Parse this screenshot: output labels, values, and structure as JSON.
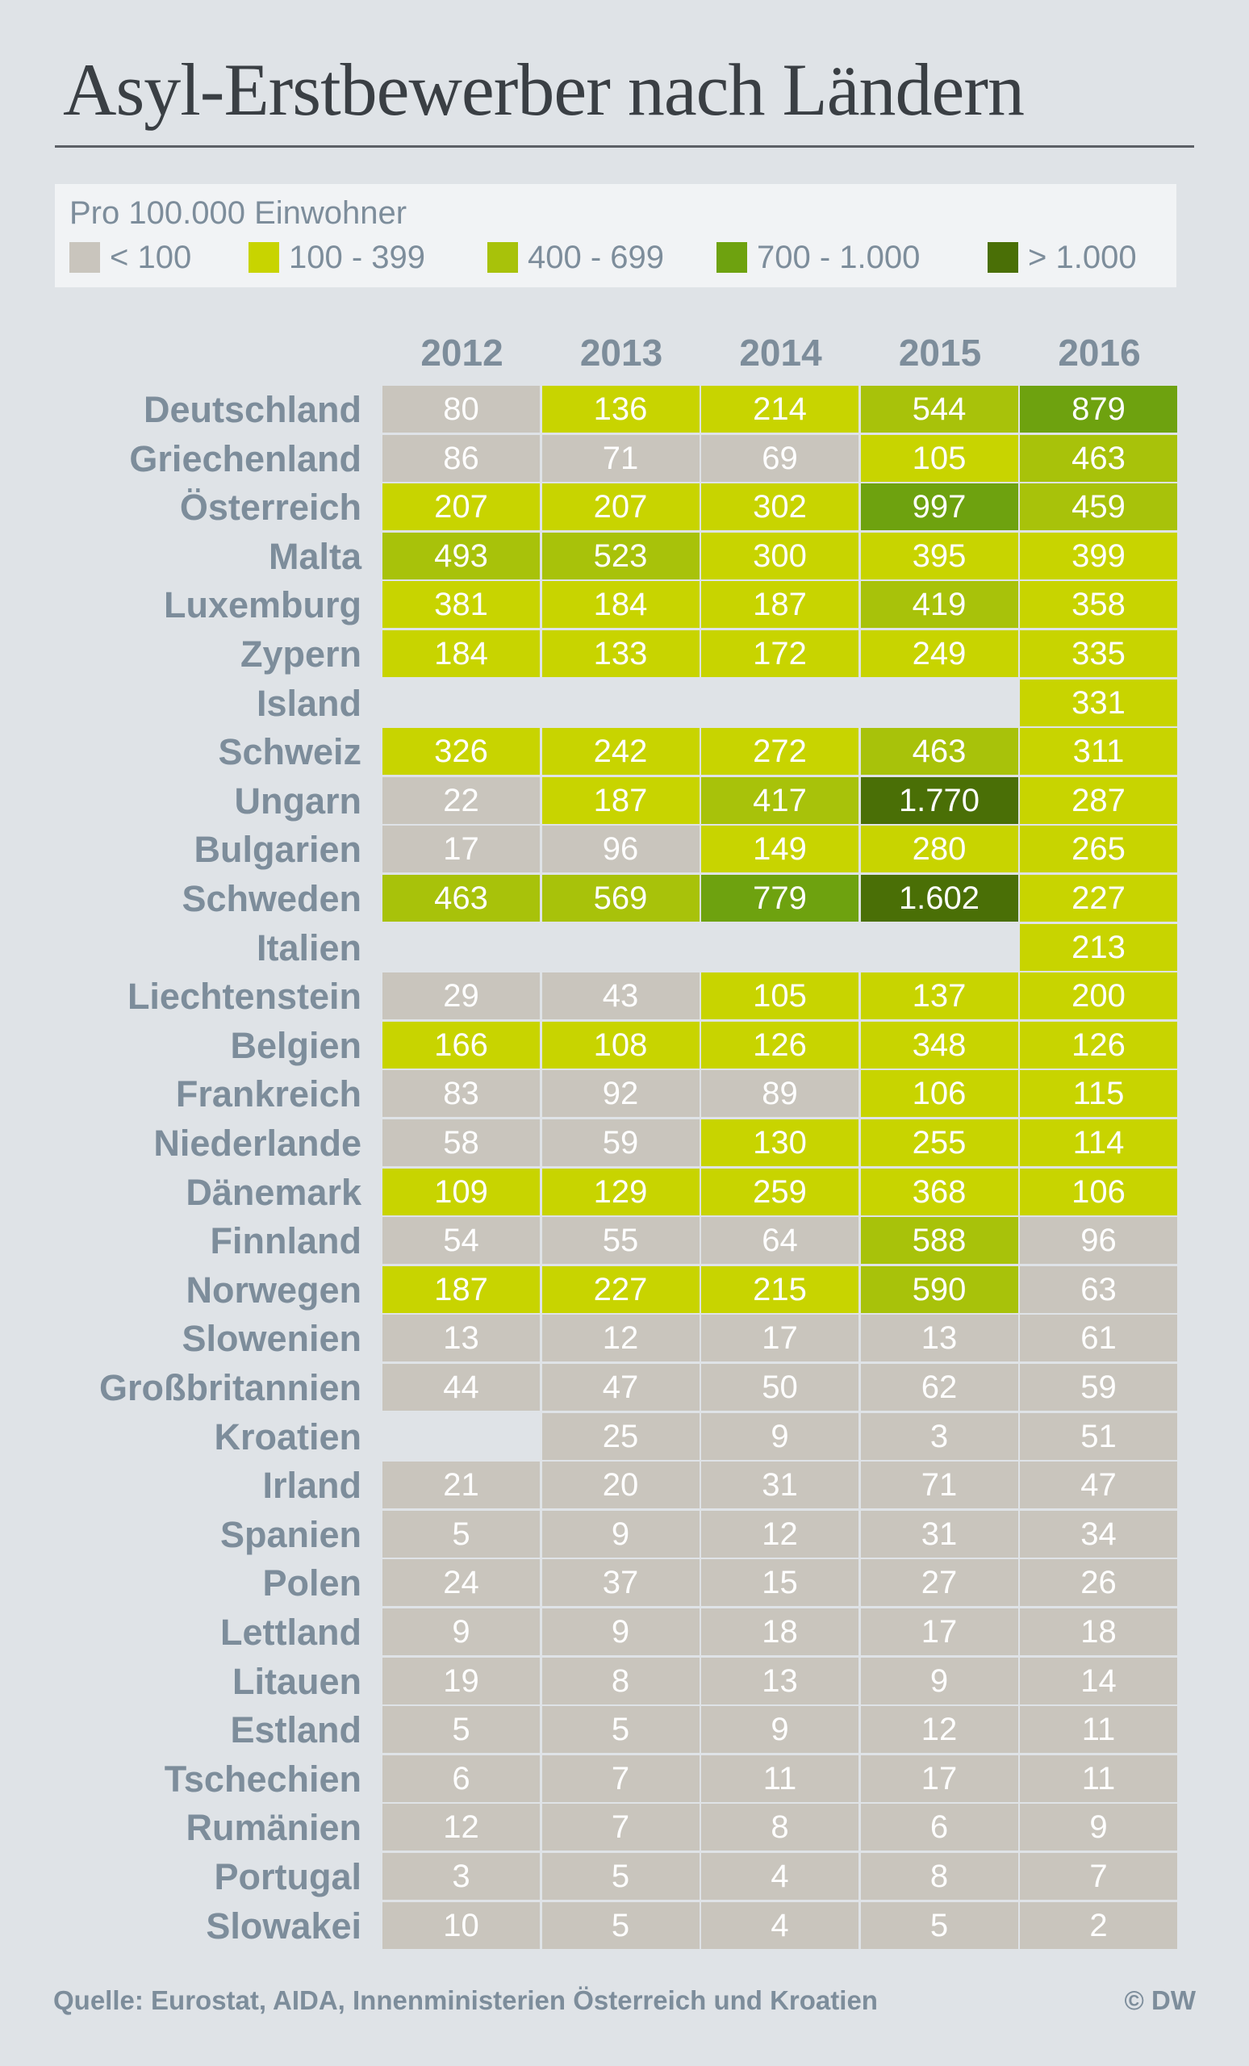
{
  "title": "Asyl-Erstbewerber nach Ländern",
  "source": "Quelle: Eurostat, AIDA, Innenministerien Österreich und Kroatien",
  "copyright": "© DW",
  "legend": {
    "title": "Pro 100.000 Einwohner",
    "items": [
      {
        "label": "< 100",
        "color": "#c9c5bd"
      },
      {
        "label": "100 - 399",
        "color": "#c8d400"
      },
      {
        "label": "400 - 699",
        "color": "#a8c20a"
      },
      {
        "label": "700 - 1.000",
        "color": "#6ea20f"
      },
      {
        "label": "> 1.000",
        "color": "#4a6f06"
      }
    ]
  },
  "chart_data": {
    "type": "table",
    "title": "Asyl-Erstbewerber nach Ländern",
    "subtitle": "Pro 100.000 Einwohner",
    "columns": [
      "2012",
      "2013",
      "2014",
      "2015",
      "2016"
    ],
    "thresholds": [
      100,
      400,
      700,
      1000
    ],
    "rows": [
      {
        "label": "Deutschland",
        "values": [
          "80",
          "136",
          "214",
          "544",
          "879"
        ]
      },
      {
        "label": "Griechenland",
        "values": [
          "86",
          "71",
          "69",
          "105",
          "463"
        ]
      },
      {
        "label": "Österreich",
        "values": [
          "207",
          "207",
          "302",
          "997",
          "459"
        ]
      },
      {
        "label": "Malta",
        "values": [
          "493",
          "523",
          "300",
          "395",
          "399"
        ]
      },
      {
        "label": "Luxemburg",
        "values": [
          "381",
          "184",
          "187",
          "419",
          "358"
        ]
      },
      {
        "label": "Zypern",
        "values": [
          "184",
          "133",
          "172",
          "249",
          "335"
        ]
      },
      {
        "label": "Island",
        "values": [
          null,
          null,
          null,
          null,
          "331"
        ]
      },
      {
        "label": "Schweiz",
        "values": [
          "326",
          "242",
          "272",
          "463",
          "311"
        ]
      },
      {
        "label": "Ungarn",
        "values": [
          "22",
          "187",
          "417",
          "1.770",
          "287"
        ]
      },
      {
        "label": "Bulgarien",
        "values": [
          "17",
          "96",
          "149",
          "280",
          "265"
        ]
      },
      {
        "label": "Schweden",
        "values": [
          "463",
          "569",
          "779",
          "1.602",
          "227"
        ]
      },
      {
        "label": "Italien",
        "values": [
          null,
          null,
          null,
          null,
          "213"
        ]
      },
      {
        "label": "Liechtenstein",
        "values": [
          "29",
          "43",
          "105",
          "137",
          "200"
        ]
      },
      {
        "label": "Belgien",
        "values": [
          "166",
          "108",
          "126",
          "348",
          "126"
        ]
      },
      {
        "label": "Frankreich",
        "values": [
          "83",
          "92",
          "89",
          "106",
          "115"
        ]
      },
      {
        "label": "Niederlande",
        "values": [
          "58",
          "59",
          "130",
          "255",
          "114"
        ]
      },
      {
        "label": "Dänemark",
        "values": [
          "109",
          "129",
          "259",
          "368",
          "106"
        ]
      },
      {
        "label": "Finnland",
        "values": [
          "54",
          "55",
          "64",
          "588",
          "96"
        ]
      },
      {
        "label": "Norwegen",
        "values": [
          "187",
          "227",
          "215",
          "590",
          "63"
        ]
      },
      {
        "label": "Slowenien",
        "values": [
          "13",
          "12",
          "17",
          "13",
          "61"
        ]
      },
      {
        "label": "Großbritannien",
        "values": [
          "44",
          "47",
          "50",
          "62",
          "59"
        ]
      },
      {
        "label": "Kroatien",
        "values": [
          null,
          "25",
          "9",
          "3",
          "51"
        ]
      },
      {
        "label": "Irland",
        "values": [
          "21",
          "20",
          "31",
          "71",
          "47"
        ]
      },
      {
        "label": "Spanien",
        "values": [
          "5",
          "9",
          "12",
          "31",
          "34"
        ]
      },
      {
        "label": "Polen",
        "values": [
          "24",
          "37",
          "15",
          "27",
          "26"
        ]
      },
      {
        "label": "Lettland",
        "values": [
          "9",
          "9",
          "18",
          "17",
          "18"
        ]
      },
      {
        "label": "Litauen",
        "values": [
          "19",
          "8",
          "13",
          "9",
          "14"
        ]
      },
      {
        "label": "Estland",
        "values": [
          "5",
          "5",
          "9",
          "12",
          "11"
        ]
      },
      {
        "label": "Tschechien",
        "values": [
          "6",
          "7",
          "11",
          "17",
          "11"
        ]
      },
      {
        "label": "Rumänien",
        "values": [
          "12",
          "7",
          "8",
          "6",
          "9"
        ]
      },
      {
        "label": "Portugal",
        "values": [
          "3",
          "5",
          "4",
          "8",
          "7"
        ]
      },
      {
        "label": "Slowakei",
        "values": [
          "10",
          "5",
          "4",
          "5",
          "2"
        ]
      }
    ]
  }
}
